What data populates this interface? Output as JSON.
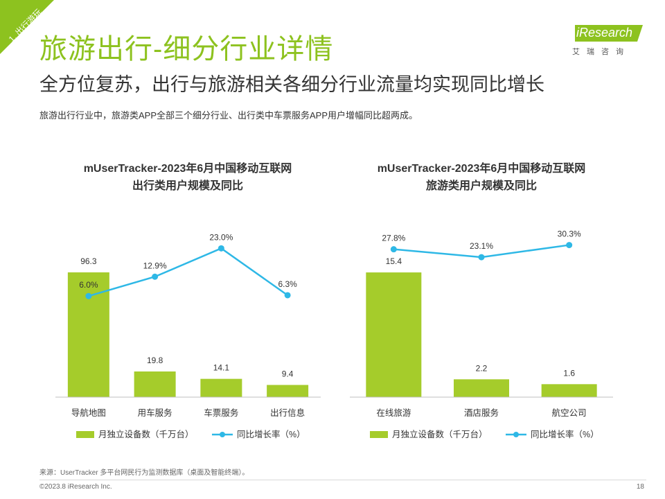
{
  "section_tag": "1. 出行游玩",
  "title": "旅游出行-细分行业详情",
  "subtitle": "全方位复苏，出行与旅游相关各细分行业流量均实现同比增长",
  "description": "旅游出行行业中，旅游类APP全部三个细分行业、出行类中车票服务APP用户增幅同比超两成。",
  "logo": {
    "brand": "iResearch",
    "tagline": "艾瑞咨询"
  },
  "colors": {
    "bar": "#a5cc2b",
    "line": "#2eb8e6",
    "accent": "#8dc21f"
  },
  "legend": {
    "bar_label": "月独立设备数（千万台）",
    "line_label": "同比增长率（%）"
  },
  "chart_data": [
    {
      "type": "bar",
      "title_line1": "mUserTracker-2023年6月中国移动互联网",
      "title_line2": "出行类用户规模及同比",
      "categories": [
        "导航地图",
        "用车服务",
        "车票服务",
        "出行信息"
      ],
      "series": [
        {
          "name": "月独立设备数（千万台）",
          "type": "bar",
          "values": [
            96.3,
            19.8,
            14.1,
            9.4
          ],
          "labels": [
            "96.3",
            "19.8",
            "14.1",
            "9.4"
          ]
        },
        {
          "name": "同比增长率（%）",
          "type": "line",
          "values": [
            6.0,
            12.9,
            23.0,
            6.3
          ],
          "labels": [
            "6.0%",
            "12.9%",
            "23.0%",
            "6.3%"
          ]
        }
      ],
      "bar_ylim": [
        0,
        130
      ],
      "line_ylim": [
        -30,
        30
      ]
    },
    {
      "type": "bar",
      "title_line1": "mUserTracker-2023年6月中国移动互联网",
      "title_line2": "旅游类用户规模及同比",
      "categories": [
        "在线旅游",
        "酒店服务",
        "航空公司"
      ],
      "series": [
        {
          "name": "月独立设备数（千万台）",
          "type": "bar",
          "values": [
            15.4,
            2.2,
            1.6
          ],
          "labels": [
            "15.4",
            "2.2",
            "1.6"
          ]
        },
        {
          "name": "同比增长率（%）",
          "type": "line",
          "values": [
            27.8,
            23.1,
            30.3
          ],
          "labels": [
            "27.8%",
            "23.1%",
            "30.3%"
          ]
        }
      ],
      "bar_ylim": [
        0,
        20.8
      ],
      "line_ylim": [
        -60,
        40
      ]
    }
  ],
  "footer": {
    "source": "来源：UserTracker 多平台网民行为监测数据库（桌面及智能终端）。",
    "copyright": "©2023.8 iResearch Inc.",
    "page_number": "18"
  }
}
